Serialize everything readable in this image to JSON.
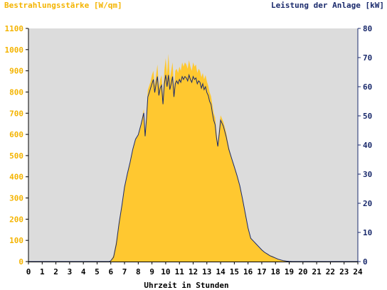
{
  "chart_data": {
    "type": "area",
    "left_axis_title": "Bestrahlungsstärke [W/qm]",
    "right_axis_title": "Leistung der Anlage [kW]",
    "xlabel": "Uhrzeit in Stunden",
    "x_ticks": [
      "0",
      "1",
      "2",
      "3",
      "4",
      "5",
      "6",
      "7",
      "8",
      "9",
      "10",
      "11",
      "12",
      "13",
      "14",
      "15",
      "16",
      "17",
      "18",
      "19",
      "20",
      "21",
      "22",
      "23",
      "24"
    ],
    "y_left_ticks": [
      "0",
      "100",
      "200",
      "300",
      "400",
      "500",
      "600",
      "700",
      "800",
      "900",
      "1000",
      "1100"
    ],
    "y_right_ticks": [
      "0",
      "10",
      "20",
      "30",
      "40",
      "50",
      "60",
      "70",
      "80"
    ],
    "xlim": [
      0,
      24
    ],
    "ylim_left": [
      0,
      1100
    ],
    "ylim_right": [
      0,
      80
    ],
    "grid": false,
    "colors": {
      "irradiance": "#ffc830",
      "power": "#1a2a6c",
      "plot_bg": "#dcdcdc",
      "left_axis": "#f4b400",
      "right_axis": "#1a2a6c"
    },
    "series": [
      {
        "axis": "left",
        "style": "filled-area",
        "x": [
          0,
          5.9,
          6.0,
          6.2,
          6.4,
          6.6,
          6.8,
          7.0,
          7.2,
          7.4,
          7.6,
          7.8,
          8.0,
          8.2,
          8.4,
          8.5,
          8.6,
          8.7,
          8.8,
          8.9,
          9.0,
          9.1,
          9.2,
          9.3,
          9.4,
          9.5,
          9.6,
          9.7,
          9.8,
          9.9,
          10.0,
          10.1,
          10.2,
          10.3,
          10.4,
          10.5,
          10.6,
          10.7,
          10.8,
          10.9,
          11.0,
          11.1,
          11.2,
          11.3,
          11.4,
          11.5,
          11.6,
          11.7,
          11.8,
          11.9,
          12.0,
          12.1,
          12.2,
          12.3,
          12.4,
          12.5,
          12.6,
          12.7,
          12.8,
          12.9,
          13.0,
          13.1,
          13.2,
          13.3,
          13.4,
          13.5,
          13.6,
          13.7,
          13.8,
          13.9,
          14.0,
          14.2,
          14.4,
          14.6,
          14.8,
          15.0,
          15.2,
          15.4,
          15.6,
          15.8,
          16.0,
          16.2,
          16.4,
          16.6,
          16.8,
          17.0,
          17.2,
          17.4,
          17.6,
          17.8,
          18.0,
          18.2,
          18.4,
          18.6,
          18.8,
          19.0,
          19.2,
          19.4,
          24
        ],
        "values": [
          0,
          0,
          5,
          30,
          100,
          190,
          270,
          360,
          410,
          470,
          530,
          580,
          600,
          650,
          720,
          580,
          700,
          810,
          830,
          850,
          880,
          900,
          830,
          880,
          930,
          820,
          860,
          880,
          780,
          900,
          960,
          880,
          980,
          860,
          900,
          940,
          820,
          900,
          910,
          890,
          920,
          900,
          940,
          920,
          940,
          930,
          910,
          950,
          920,
          900,
          940,
          920,
          930,
          890,
          910,
          900,
          870,
          890,
          860,
          880,
          850,
          830,
          800,
          780,
          740,
          700,
          680,
          610,
          560,
          630,
          690,
          660,
          610,
          540,
          490,
          450,
          410,
          360,
          300,
          230,
          160,
          110,
          95,
          80,
          65,
          55,
          45,
          38,
          30,
          25,
          18,
          12,
          8,
          4,
          2,
          1,
          0,
          0,
          0
        ]
      },
      {
        "axis": "right",
        "style": "line",
        "x": [
          0,
          5.9,
          6.0,
          6.2,
          6.4,
          6.6,
          6.8,
          7.0,
          7.2,
          7.4,
          7.6,
          7.8,
          8.0,
          8.2,
          8.4,
          8.5,
          8.6,
          8.7,
          8.8,
          8.9,
          9.0,
          9.1,
          9.2,
          9.3,
          9.4,
          9.5,
          9.6,
          9.7,
          9.8,
          9.9,
          10.0,
          10.1,
          10.2,
          10.3,
          10.4,
          10.5,
          10.6,
          10.7,
          10.8,
          10.9,
          11.0,
          11.1,
          11.2,
          11.3,
          11.4,
          11.5,
          11.6,
          11.7,
          11.8,
          11.9,
          12.0,
          12.1,
          12.2,
          12.3,
          12.4,
          12.5,
          12.6,
          12.7,
          12.8,
          12.9,
          13.0,
          13.1,
          13.2,
          13.3,
          13.4,
          13.5,
          13.6,
          13.7,
          13.8,
          13.9,
          14.0,
          14.2,
          14.4,
          14.6,
          14.8,
          15.0,
          15.2,
          15.4,
          15.6,
          15.8,
          16.0,
          16.2,
          16.4,
          16.6,
          16.8,
          17.0,
          17.2,
          17.4,
          17.6,
          17.8,
          18.0,
          18.2,
          18.4,
          18.6,
          18.8,
          19.0,
          19.2,
          19.4,
          24
        ],
        "values": [
          0,
          0,
          0.3,
          1.5,
          6,
          13,
          19,
          25.5,
          30,
          34,
          38.5,
          42,
          43.5,
          47,
          51,
          43,
          49,
          56.5,
          58,
          59.5,
          61,
          62.5,
          58,
          61,
          63.5,
          57,
          59.5,
          60.5,
          54,
          61,
          64,
          60,
          64,
          59,
          61,
          63.5,
          56.5,
          61,
          62,
          61,
          62.5,
          61.5,
          63.5,
          62.5,
          63.5,
          63,
          62,
          64,
          62.5,
          61.5,
          63.5,
          62.5,
          63,
          61,
          62,
          61.5,
          59.5,
          61,
          59,
          60,
          58,
          57,
          55,
          54,
          51,
          48.5,
          47,
          42.5,
          39.5,
          44,
          48.5,
          46.5,
          43,
          38.5,
          35.5,
          32.5,
          29.5,
          26,
          21.5,
          16.5,
          11.5,
          8,
          7,
          6,
          5,
          4,
          3.2,
          2.6,
          2,
          1.6,
          1.2,
          0.8,
          0.5,
          0.3,
          0.15,
          0.05,
          0,
          0,
          0
        ]
      }
    ]
  }
}
